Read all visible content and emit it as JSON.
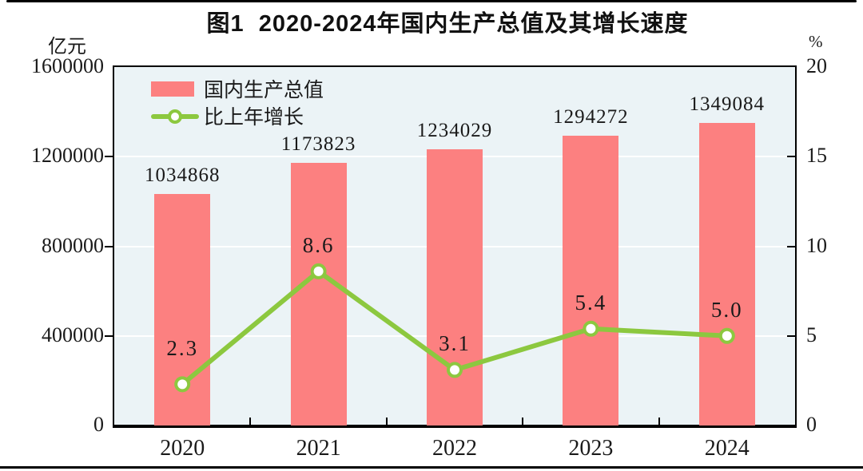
{
  "figure": {
    "title": "图1  2020-2024年国内生产总值及其增长速度"
  },
  "left_axis": {
    "unit": "亿元",
    "tick_labels": [
      "0",
      "400000",
      "800000",
      "1200000",
      "1600000"
    ]
  },
  "right_axis": {
    "unit": "%",
    "tick_labels": [
      "0",
      "5",
      "10",
      "15",
      "20"
    ]
  },
  "legend": {
    "bar_label": "国内生产总值",
    "line_label": "比上年增长"
  },
  "colors": {
    "bar": "#fc8080",
    "line": "#8cc83f",
    "marker_fill": "#ffffff",
    "plot_background": "#ebf3f6",
    "gridline": "#ffffff",
    "frame": "#000000",
    "text": "#1a1a1a"
  },
  "chart_data": {
    "type": "bar",
    "subtype": "bar+line combo, dual axis",
    "title": "图1 2020-2024年国内生产总值及其增长速度",
    "categories": [
      "2020",
      "2021",
      "2022",
      "2023",
      "2024"
    ],
    "series": [
      {
        "name": "国内生产总值",
        "type": "bar",
        "axis": "left",
        "unit": "亿元",
        "values": [
          1034868,
          1173823,
          1234029,
          1294272,
          1349084
        ],
        "labels": [
          "1034868",
          "1173823",
          "1234029",
          "1294272",
          "1349084"
        ]
      },
      {
        "name": "比上年增长",
        "type": "line",
        "axis": "right",
        "unit": "%",
        "values": [
          2.3,
          8.6,
          3.1,
          5.4,
          5.0
        ],
        "labels": [
          "2.3",
          "8.6",
          "3.1",
          "5.4",
          "5.0"
        ]
      }
    ],
    "left_ylim": [
      0,
      1600000
    ],
    "left_ticks": [
      0,
      400000,
      800000,
      1200000,
      1600000
    ],
    "right_ylim": [
      0,
      20
    ],
    "right_ticks": [
      0,
      5,
      10,
      15,
      20
    ],
    "grid": "horizontal white gridlines at left-axis ticks",
    "legend_position": "top-left inside plot area"
  }
}
